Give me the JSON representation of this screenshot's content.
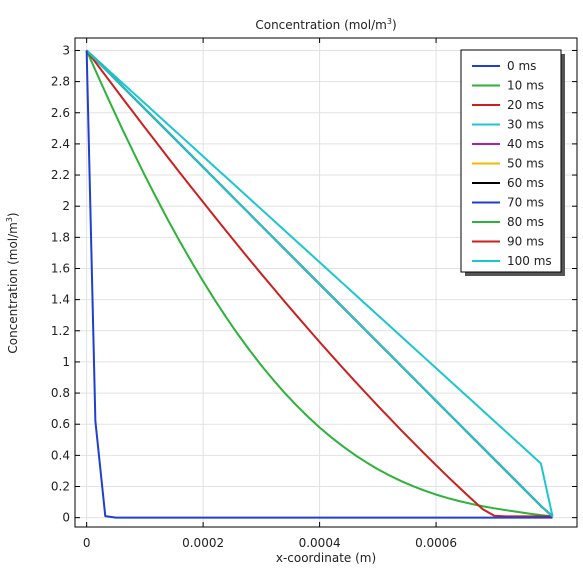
{
  "chart_data": {
    "type": "line",
    "title": "Concentration (mol/m",
    "title_sup": "3",
    "title_end": ")",
    "xlabel": "x-coordinate (m)",
    "ylabel": "Concentration (mol/m",
    "ylabel_sup": "3",
    "ylabel_end": ")",
    "xlim": [
      -2e-05,
      0.000842
    ],
    "ylim": [
      -0.06,
      3.08
    ],
    "x_ticks": [
      0,
      0.0002,
      0.0004,
      0.0006
    ],
    "x_tick_labels": [
      "0",
      "0.0002",
      "0.0004",
      "0.0006"
    ],
    "y_ticks": [
      0,
      0.2,
      0.4,
      0.6,
      0.8,
      1,
      1.2,
      1.4,
      1.6,
      1.8,
      2,
      2.2,
      2.4,
      2.6,
      2.8,
      3
    ],
    "y_tick_labels": [
      "0",
      "0.2",
      "0.4",
      "0.6",
      "0.8",
      "1",
      "1.2",
      "1.4",
      "1.6",
      "1.8",
      "2",
      "2.2",
      "2.4",
      "2.6",
      "2.8",
      "3"
    ],
    "grid": true,
    "legend_position": "top-right",
    "x": [
      0,
      2e-05,
      4e-05,
      6e-05,
      8e-05,
      0.0001,
      0.00012,
      0.00014,
      0.00016,
      0.00018,
      0.0002,
      0.00022,
      0.00024,
      0.00026,
      0.00028,
      0.0003,
      0.00032,
      0.00034,
      0.00036,
      0.00038,
      0.0004,
      0.00042,
      0.00044,
      0.00046,
      0.00048,
      0.0005,
      0.00052,
      0.00054,
      0.00056,
      0.00058,
      0.0006,
      0.00062,
      0.00064,
      0.00066,
      0.00068,
      0.0007,
      0.00072,
      0.00074,
      0.00076,
      0.00078,
      0.0008
    ],
    "series": [
      {
        "name": "0 ms",
        "color": "#1f3fd0",
        "x": [
          0,
          1.5e-05,
          3.2e-05,
          5e-05,
          0.0008
        ],
        "values": [
          3,
          0.62,
          0.01,
          0,
          0
        ]
      },
      {
        "name": "10 ms",
        "color": "#2db23a",
        "values": [
          3,
          2.831,
          2.666,
          2.505,
          2.349,
          2.197,
          2.051,
          1.909,
          1.773,
          1.643,
          1.518,
          1.398,
          1.284,
          1.176,
          1.074,
          0.977,
          0.887,
          0.801,
          0.722,
          0.648,
          0.579,
          0.516,
          0.458,
          0.404,
          0.356,
          0.311,
          0.271,
          0.235,
          0.203,
          0.174,
          0.148,
          0.126,
          0.106,
          0.089,
          0.073,
          0.06,
          0.048,
          0.037,
          0.026,
          0.016,
          0.008
        ]
      },
      {
        "name": "20 ms",
        "color": "#cc1f1f",
        "values": [
          3,
          2.9,
          2.801,
          2.701,
          2.603,
          2.505,
          2.408,
          2.311,
          2.215,
          2.12,
          2.026,
          1.932,
          1.839,
          1.747,
          1.655,
          1.565,
          1.476,
          1.387,
          1.3,
          1.214,
          1.128,
          1.044,
          0.961,
          0.879,
          0.798,
          0.718,
          0.64,
          0.562,
          0.486,
          0.411,
          0.337,
          0.264,
          0.193,
          0.123,
          0.055,
          0.012,
          0.008,
          0.008,
          0.008,
          0.008,
          0.008
        ]
      },
      {
        "name": "30 ms",
        "color": "#1cc6d0",
        "values": [
          3,
          2.932,
          2.864,
          2.796,
          2.728,
          2.66,
          2.592,
          2.524,
          2.456,
          2.388,
          2.32,
          2.252,
          2.184,
          2.116,
          2.048,
          1.98,
          1.912,
          1.844,
          1.776,
          1.708,
          1.64,
          1.572,
          1.504,
          1.436,
          1.368,
          1.3,
          1.232,
          1.164,
          1.096,
          1.028,
          0.96,
          0.892,
          0.824,
          0.756,
          0.688,
          0.62,
          0.552,
          0.484,
          0.416,
          0.348,
          0.008
        ]
      },
      {
        "name": "40 ms",
        "color": "#b01cb0",
        "values": [
          3,
          2.925,
          2.85,
          2.775,
          2.7,
          2.625,
          2.55,
          2.475,
          2.4,
          2.325,
          2.25,
          2.175,
          2.1,
          2.025,
          1.95,
          1.875,
          1.8,
          1.725,
          1.65,
          1.575,
          1.5,
          1.425,
          1.35,
          1.275,
          1.2,
          1.125,
          1.05,
          0.975,
          0.9,
          0.825,
          0.75,
          0.675,
          0.6,
          0.525,
          0.45,
          0.375,
          0.3,
          0.225,
          0.15,
          0.075,
          0.008
        ]
      },
      {
        "name": "50 ms",
        "color": "#f5b800",
        "values": [
          3,
          2.925,
          2.85,
          2.775,
          2.7,
          2.625,
          2.55,
          2.475,
          2.4,
          2.325,
          2.25,
          2.175,
          2.1,
          2.025,
          1.95,
          1.875,
          1.8,
          1.725,
          1.65,
          1.575,
          1.5,
          1.425,
          1.35,
          1.275,
          1.2,
          1.125,
          1.05,
          0.975,
          0.9,
          0.825,
          0.75,
          0.675,
          0.6,
          0.525,
          0.45,
          0.375,
          0.3,
          0.225,
          0.15,
          0.075,
          0.008
        ]
      },
      {
        "name": "60 ms",
        "color": "#000000",
        "values": [
          3,
          2.925,
          2.85,
          2.775,
          2.7,
          2.625,
          2.55,
          2.475,
          2.4,
          2.325,
          2.25,
          2.175,
          2.1,
          2.025,
          1.95,
          1.875,
          1.8,
          1.725,
          1.65,
          1.575,
          1.5,
          1.425,
          1.35,
          1.275,
          1.2,
          1.125,
          1.05,
          0.975,
          0.9,
          0.825,
          0.75,
          0.675,
          0.6,
          0.525,
          0.45,
          0.375,
          0.3,
          0.225,
          0.15,
          0.075,
          0.008
        ]
      },
      {
        "name": "70 ms",
        "color": "#1f3fd0",
        "values": [
          3,
          2.925,
          2.85,
          2.775,
          2.7,
          2.625,
          2.55,
          2.475,
          2.4,
          2.325,
          2.25,
          2.175,
          2.1,
          2.025,
          1.95,
          1.875,
          1.8,
          1.725,
          1.65,
          1.575,
          1.5,
          1.425,
          1.35,
          1.275,
          1.2,
          1.125,
          1.05,
          0.975,
          0.9,
          0.825,
          0.75,
          0.675,
          0.6,
          0.525,
          0.45,
          0.375,
          0.3,
          0.225,
          0.15,
          0.075,
          0.008
        ]
      },
      {
        "name": "80 ms",
        "color": "#2db23a",
        "values": [
          3,
          2.925,
          2.85,
          2.775,
          2.7,
          2.625,
          2.55,
          2.475,
          2.4,
          2.325,
          2.25,
          2.175,
          2.1,
          2.025,
          1.95,
          1.875,
          1.8,
          1.725,
          1.65,
          1.575,
          1.5,
          1.425,
          1.35,
          1.275,
          1.2,
          1.125,
          1.05,
          0.975,
          0.9,
          0.825,
          0.75,
          0.675,
          0.6,
          0.525,
          0.45,
          0.375,
          0.3,
          0.225,
          0.15,
          0.075,
          0.008
        ]
      },
      {
        "name": "90 ms",
        "color": "#cc1f1f",
        "values": [
          3,
          2.925,
          2.85,
          2.775,
          2.7,
          2.625,
          2.55,
          2.475,
          2.4,
          2.325,
          2.25,
          2.175,
          2.1,
          2.025,
          1.95,
          1.875,
          1.8,
          1.725,
          1.65,
          1.575,
          1.5,
          1.425,
          1.35,
          1.275,
          1.2,
          1.125,
          1.05,
          0.975,
          0.9,
          0.825,
          0.75,
          0.675,
          0.6,
          0.525,
          0.45,
          0.375,
          0.3,
          0.225,
          0.15,
          0.075,
          0.008
        ]
      },
      {
        "name": "100 ms",
        "color": "#1cc6d0",
        "values": [
          3,
          2.925,
          2.85,
          2.775,
          2.7,
          2.625,
          2.55,
          2.475,
          2.4,
          2.325,
          2.25,
          2.175,
          2.1,
          2.025,
          1.95,
          1.875,
          1.8,
          1.725,
          1.65,
          1.575,
          1.5,
          1.425,
          1.35,
          1.275,
          1.2,
          1.125,
          1.05,
          0.975,
          0.9,
          0.825,
          0.75,
          0.675,
          0.6,
          0.525,
          0.45,
          0.375,
          0.3,
          0.225,
          0.15,
          0.075,
          0.008
        ]
      }
    ]
  }
}
